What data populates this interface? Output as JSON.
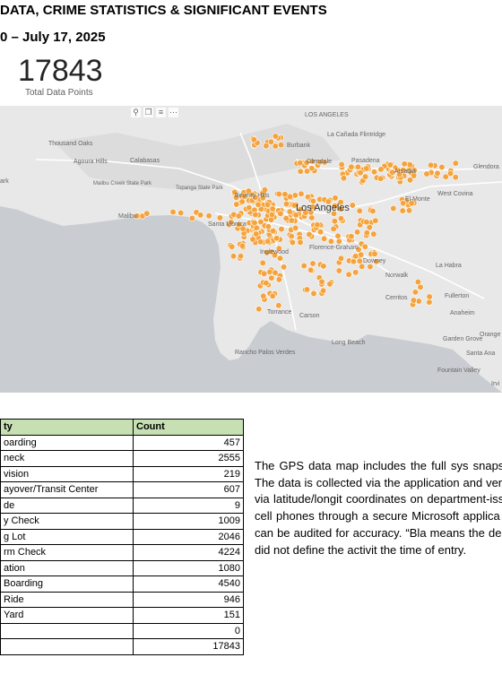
{
  "header": {
    "title_line1": "DATA, CRIME STATISTICS & SIGNIFICANT EVENTS",
    "title_line2": "0 – July 17, 2025"
  },
  "kpi": {
    "value": "17843",
    "label": "Total Data Points"
  },
  "map": {
    "labels": [
      "Thousand Oaks",
      "Agoura Hills",
      "Calabasas",
      "Malibu Creek State Park",
      "Topanga State Park",
      "Malibu",
      "Santa Monica",
      "Beverly Hills",
      "Los Angeles",
      "Burbank",
      "Glendale",
      "Pasadena",
      "Arcadia",
      "La Cañada Flintridge",
      "Glendora",
      "West Covina",
      "El Monte",
      "Inglewood",
      "Florence-Graham",
      "Downey",
      "Norwalk",
      "La Habra",
      "Fullerton",
      "Anaheim",
      "Cerritos",
      "Torrance",
      "Carson",
      "Long Beach",
      "Garden Grove",
      "Santa Ana",
      "Orange",
      "Rancho Palos Verdes",
      "Fountain Valley",
      "Irvi",
      "LOS ANGELES",
      "ark"
    ],
    "toolbar_icons": [
      "pin-icon",
      "copy-icon",
      "filter-icon",
      "more-icon"
    ],
    "colors": {
      "water": "#c9ccd1",
      "land": "#e8e8e8",
      "dot": "#f5a33c",
      "dot_border": "#ffffff"
    }
  },
  "table": {
    "headers": [
      "ty",
      "Count"
    ],
    "rows": [
      {
        "label": "oarding",
        "count": "457"
      },
      {
        "label": "neck",
        "count": "2555"
      },
      {
        "label": "vision",
        "count": "219"
      },
      {
        "label": "ayover/Transit Center",
        "count": "607"
      },
      {
        "label": "de",
        "count": "9"
      },
      {
        "label": "y Check",
        "count": "1009"
      },
      {
        "label": "g Lot",
        "count": "2046"
      },
      {
        "label": "rm Check",
        "count": "4224"
      },
      {
        "label": "ation",
        "count": "1080"
      },
      {
        "label": "Boarding",
        "count": "4540"
      },
      {
        "label": "Ride",
        "count": "946"
      },
      {
        "label": "Yard",
        "count": "151"
      },
      {
        "label": "",
        "count": "0"
      },
      {
        "label": "",
        "count": "17843"
      }
    ]
  },
  "description": "The GPS data map includes the full sys snapshot. The data is collected via the application and verified via latitude/longit coordinates on department-issued cell phones through a secure Microsoft applica and can be audited for accuracy. “Bla means the deputy did not define the activit the time of entry."
}
